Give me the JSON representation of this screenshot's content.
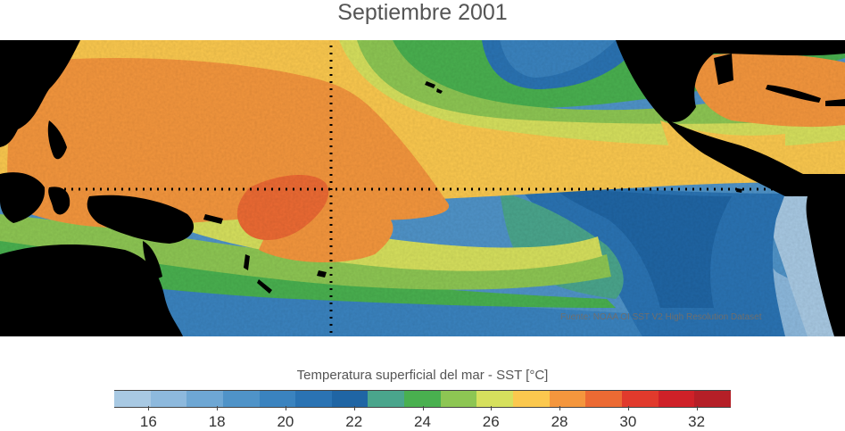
{
  "title": "Septiembre 2001",
  "credit": "Fuente: NOAA OI SST V2 High Resolution Dataset",
  "colorbar": {
    "label": "Temperatura superficial del mar - SST  [°C]",
    "min": 15,
    "max": 33,
    "tick_values": [
      16,
      18,
      20,
      22,
      24,
      26,
      28,
      30,
      32
    ],
    "tick_labels": [
      "16",
      "18",
      "20",
      "22",
      "24",
      "26",
      "28",
      "30",
      "32"
    ],
    "colors": [
      "#a8c9e3",
      "#8db9dd",
      "#6ea7d4",
      "#4f93c8",
      "#3a83bf",
      "#2a73b3",
      "#1f65a4",
      "#4aa58c",
      "#49b04f",
      "#8dc653",
      "#d6e05d",
      "#fbc84e",
      "#f4963d",
      "#ec6a33",
      "#e13a2c",
      "#cf2128",
      "#b51f27"
    ]
  },
  "colors": {
    "land": "#000000",
    "gridline": "#000000",
    "warm_pool": "#ef7a37",
    "warm_core": "#e85a2c",
    "cold_tongue": "#1f65a4",
    "coastal_cold": "#a8c9e3"
  },
  "map": {
    "regions": [
      "western-pacific-warm-pool",
      "equatorial-cold-tongue",
      "north-pacific",
      "south-pacific",
      "caribbean"
    ]
  }
}
